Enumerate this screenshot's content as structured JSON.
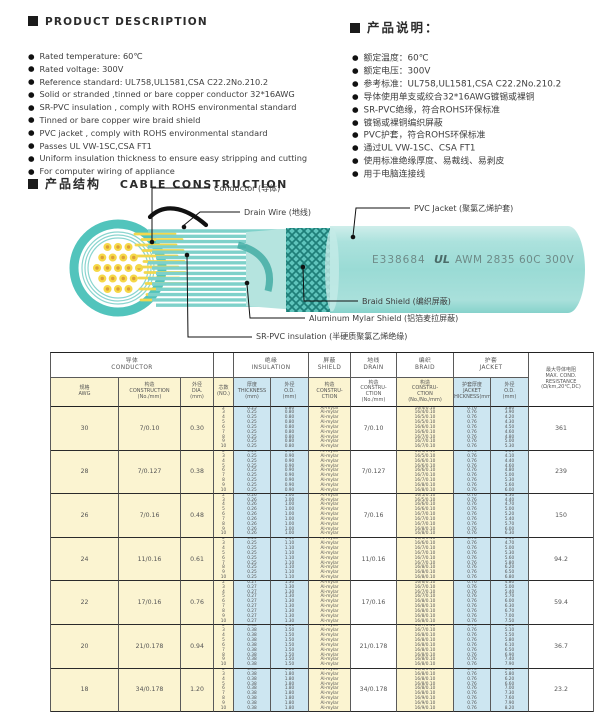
{
  "product_description": {
    "title_en": "PRODUCT DESCRIPTION",
    "items_en": [
      "Rated temperature: 60℃",
      "Rated voltage: 300V",
      "Reference standard: UL758,UL1581,CSA C22.2No.210.2",
      "Solid or stranded ,tinned or bare copper conductor 32*16AWG",
      "SR-PVC insulation , comply with ROHS environmental standard",
      "Tinned or bare copper wire braid shield",
      "PVC jacket , comply with ROHS environmental standard",
      "Passes UL VW-1SC,CSA FT1",
      "Uniform insulation thickness to ensure easy stripping and cutting",
      "For computer wiring of appliance"
    ],
    "title_zh": "产品说明：",
    "items_zh": [
      "额定温度：60℃",
      "额定电压：300V",
      "参考标准：UL758,UL1581,CSA C22.2No.210.2",
      "导体使用单支或绞合32*16AWG镀锡或裸铜",
      "SR-PVC绝缘，符合ROHS环保标准",
      "镀锡或裸铜编织屏蔽",
      "PVC护套，符合ROHS环保标准",
      "通过UL VW-1SC、CSA FT1",
      "使用标准绝缘厚度、易裁线、易剥皮",
      "用于电脑连接线"
    ]
  },
  "construction": {
    "title_zh": "产品结构",
    "title_en": "CABLE CONSTRUCTION",
    "labels": {
      "conductor": "Conductor (导体)",
      "drain_wire": "Drain Wire (地线)",
      "pvc_jacket": "PVC Jacket (聚氯乙烯护套)",
      "braid_shield": "Braid Shield (编织屏蔽)",
      "aluminum_mylar_shield": "Aluminum Mylar Shield (铝箔麦拉屏蔽)",
      "sr_pvc_insulation": "SR-PVC insulation (半硬质聚氯乙烯绝缘)"
    },
    "jacket_print_file": "E338684",
    "jacket_print_ul": "UL",
    "jacket_print_spec": "AWM 2835 60C 300V"
  },
  "colors": {
    "teal_ring": "#52C4BC",
    "teal_jacket": "#9FDCD6",
    "braid_dark": "#1E7E78",
    "yellow_cell": "#FBF4D1",
    "blue_cell": "#CDE6F1",
    "conductor_yellow": "#F6D847"
  },
  "table": {
    "groups": [
      {
        "zh": "导体",
        "en": "CONDUCTOR"
      },
      {
        "zh": "",
        "en": ""
      },
      {
        "zh": "绝缘",
        "en": "INSULATION"
      },
      {
        "zh": "屏蔽",
        "en": "SHIELD"
      },
      {
        "zh": "地线",
        "en": "DRAIN"
      },
      {
        "zh": "编织",
        "en": "BRAID"
      },
      {
        "zh": "护套",
        "en": "JACKET"
      }
    ],
    "sub_headers": [
      [
        "规格",
        "AWG"
      ],
      [
        "构造",
        "CONSTRUCTION",
        "(No./mm)"
      ],
      [
        "外径",
        "DIA.",
        "(mm)"
      ],
      [
        "芯数",
        "(NO.)"
      ],
      [
        "厚度",
        "THICKNESS",
        "(mm)"
      ],
      [
        "外径",
        "O.D.",
        "(mm)"
      ],
      [
        "构造",
        "CONSTRU-",
        "CTION"
      ],
      [
        "构造",
        "CONSTRU-",
        "CTION",
        "(No./mm)"
      ],
      [
        "构造",
        "CONSTRU-",
        "CTION",
        "(No./No./mm)"
      ],
      [
        "护套厚度",
        "JACKET",
        "THICKNESS(mm)"
      ],
      [
        "外径",
        "O.D.",
        "(mm)"
      ]
    ],
    "resistance_header": [
      "最大导体电阻",
      "MAX. COND.",
      "RESISTANCE",
      "(Ω/km,20℃,DC)"
    ],
    "rows": [
      {
        "awg": "30",
        "construction": "7/0.10",
        "dia": "0.30",
        "cores": [
          "2",
          "3",
          "4",
          "5",
          "6",
          "7",
          "8",
          "9",
          "10"
        ],
        "ins_thickness": [
          "0.25",
          "0.25",
          "0.25",
          "0.25",
          "0.25",
          "0.25",
          "0.25",
          "0.25",
          "0.25"
        ],
        "ins_od": [
          "0.80",
          "0.80",
          "0.80",
          "0.80",
          "0.80",
          "0.80",
          "0.80",
          "0.80",
          "0.80"
        ],
        "shield": [
          "Al-mylar",
          "Al-mylar",
          "Al-mylar",
          "Al-mylar",
          "Al-mylar",
          "Al-mylar",
          "Al-mylar",
          "Al-mylar",
          "Al-mylar"
        ],
        "drain": "7/0.10",
        "braid": [
          "16/4/0.10",
          "16/4/0.10",
          "16/5/0.10",
          "16/5/0.10",
          "16/6/0.10",
          "16/6/0.10",
          "16/7/0.10",
          "16/7/0.10",
          "16/7/0.10"
        ],
        "jk_thickness": [
          "0.76",
          "0.76",
          "0.76",
          "0.76",
          "0.76",
          "0.76",
          "0.76",
          "0.76",
          "0.76"
        ],
        "jk_od": [
          "3.80",
          "3.90",
          "4.20",
          "4.30",
          "4.50",
          "4.60",
          "4.80",
          "5.00",
          "5.30"
        ],
        "resistance": "361"
      },
      {
        "awg": "28",
        "construction": "7/0.127",
        "dia": "0.38",
        "cores": [
          "2",
          "3",
          "4",
          "5",
          "6",
          "7",
          "8",
          "9",
          "10"
        ],
        "ins_thickness": [
          "0.25",
          "0.25",
          "0.25",
          "0.25",
          "0.25",
          "0.25",
          "0.25",
          "0.25",
          "0.25"
        ],
        "ins_od": [
          "0.90",
          "0.90",
          "0.90",
          "0.90",
          "0.90",
          "0.90",
          "0.90",
          "0.90",
          "0.90"
        ],
        "shield": [
          "Al-mylar",
          "Al-mylar",
          "Al-mylar",
          "Al-mylar",
          "Al-mylar",
          "Al-mylar",
          "Al-mylar",
          "Al-mylar",
          "Al-mylar"
        ],
        "drain": "7/0.127",
        "braid": [
          "16/5/0.10",
          "16/5/0.10",
          "16/6/0.10",
          "16/6/0.10",
          "16/6/0.10",
          "16/7/0.10",
          "16/7/0.10",
          "16/8/0.10",
          "16/8/0.10"
        ],
        "jk_thickness": [
          "0.76",
          "0.76",
          "0.76",
          "0.76",
          "0.76",
          "0.76",
          "0.76",
          "0.76",
          "0.76"
        ],
        "jk_od": [
          "4.00",
          "4.10",
          "4.40",
          "4.60",
          "4.80",
          "5.00",
          "5.30",
          "5.60",
          "6.00"
        ],
        "resistance": "239"
      },
      {
        "awg": "26",
        "construction": "7/0.16",
        "dia": "0.48",
        "cores": [
          "2",
          "3",
          "4",
          "5",
          "6",
          "7",
          "8",
          "9",
          "10"
        ],
        "ins_thickness": [
          "0.26",
          "0.26",
          "0.26",
          "0.26",
          "0.26",
          "0.26",
          "0.26",
          "0.26",
          "0.26"
        ],
        "ins_od": [
          "1.00",
          "1.00",
          "1.00",
          "1.00",
          "1.00",
          "1.00",
          "1.00",
          "1.00",
          "1.00"
        ],
        "shield": [
          "Al-mylar",
          "Al-mylar",
          "Al-mylar",
          "Al-mylar",
          "Al-mylar",
          "Al-mylar",
          "Al-mylar",
          "Al-mylar",
          "Al-mylar"
        ],
        "drain": "7/0.16",
        "braid": [
          "16/5/0.10",
          "16/5/0.10",
          "16/6/0.10",
          "16/6/0.10",
          "16/7/0.10",
          "16/7/0.10",
          "16/7/0.10",
          "16/8/0.10",
          "16/8/0.10"
        ],
        "jk_thickness": [
          "0.76",
          "0.76",
          "0.76",
          "0.76",
          "0.76",
          "0.76",
          "0.76",
          "0.76",
          "0.76"
        ],
        "jk_od": [
          "4.30",
          "4.40",
          "4.70",
          "5.00",
          "5.20",
          "5.40",
          "5.70",
          "6.00",
          "6.30"
        ],
        "resistance": "150"
      },
      {
        "awg": "24",
        "construction": "11/0.16",
        "dia": "0.61",
        "cores": [
          "2",
          "3",
          "4",
          "5",
          "6",
          "7",
          "8",
          "9",
          "10"
        ],
        "ins_thickness": [
          "0.25",
          "0.25",
          "0.25",
          "0.25",
          "0.25",
          "0.25",
          "0.25",
          "0.25",
          "0.25"
        ],
        "ins_od": [
          "1.10",
          "1.10",
          "1.10",
          "1.10",
          "1.10",
          "1.10",
          "1.10",
          "1.10",
          "1.10"
        ],
        "shield": [
          "Al-mylar",
          "Al-mylar",
          "Al-mylar",
          "Al-mylar",
          "Al-mylar",
          "Al-mylar",
          "Al-mylar",
          "Al-mylar",
          "Al-mylar"
        ],
        "drain": "11/0.16",
        "braid": [
          "16/6/0.10",
          "16/6/0.10",
          "16/7/0.10",
          "16/7/0.10",
          "16/7/0.10",
          "16/7/0.10",
          "16/8/0.10",
          "16/8/0.10",
          "16/8/0.10"
        ],
        "jk_thickness": [
          "0.76",
          "0.76",
          "0.76",
          "0.76",
          "0.76",
          "0.76",
          "0.76",
          "0.76",
          "0.76"
        ],
        "jk_od": [
          "4.50",
          "4.70",
          "5.00",
          "5.30",
          "5.60",
          "5.80",
          "6.20",
          "6.50",
          "6.80"
        ],
        "resistance": "94.2"
      },
      {
        "awg": "22",
        "construction": "17/0.16",
        "dia": "0.76",
        "cores": [
          "2",
          "3",
          "4",
          "5",
          "6",
          "7",
          "8",
          "9",
          "10"
        ],
        "ins_thickness": [
          "0.27",
          "0.27",
          "0.27",
          "0.27",
          "0.27",
          "0.27",
          "0.27",
          "0.27",
          "0.27"
        ],
        "ins_od": [
          "1.30",
          "1.30",
          "1.30",
          "1.30",
          "1.30",
          "1.30",
          "1.30",
          "1.30",
          "1.30"
        ],
        "shield": [
          "Al-mylar",
          "Al-mylar",
          "Al-mylar",
          "Al-mylar",
          "Al-mylar",
          "Al-mylar",
          "Al-mylar",
          "Al-mylar",
          "Al-mylar"
        ],
        "drain": "17/0.16",
        "braid": [
          "16/6/0.10",
          "16/7/0.10",
          "16/7/0.10",
          "16/7/0.10",
          "16/8/0.10",
          "16/8/0.10",
          "16/8/0.10",
          "16/8/0.10",
          "16/8/0.10"
        ],
        "jk_thickness": [
          "0.76",
          "0.76",
          "0.76",
          "0.76",
          "0.76",
          "0.76",
          "0.76",
          "0.76",
          "0.76"
        ],
        "jk_od": [
          "4.80",
          "5.00",
          "5.40",
          "5.70",
          "6.00",
          "6.30",
          "6.70",
          "7.00",
          "7.50"
        ],
        "resistance": "59.4"
      },
      {
        "awg": "20",
        "construction": "21/0.178",
        "dia": "0.94",
        "cores": [
          "2",
          "3",
          "4",
          "5",
          "6",
          "7",
          "8",
          "9",
          "10"
        ],
        "ins_thickness": [
          "0.38",
          "0.38",
          "0.38",
          "0.38",
          "0.38",
          "0.38",
          "0.38",
          "0.38",
          "0.38"
        ],
        "ins_od": [
          "1.50",
          "1.50",
          "1.50",
          "1.50",
          "1.50",
          "1.50",
          "1.50",
          "1.50",
          "1.50"
        ],
        "shield": [
          "Al-mylar",
          "Al-mylar",
          "Al-mylar",
          "Al-mylar",
          "Al-mylar",
          "Al-mylar",
          "Al-mylar",
          "Al-mylar",
          "Al-mylar"
        ],
        "drain": "21/0.178",
        "braid": [
          "16/7/0.10",
          "16/7/0.10",
          "16/8/0.10",
          "16/8/0.10",
          "16/8/0.10",
          "16/8/0.10",
          "16/8/0.10",
          "16/8/0.10",
          "16/8/0.10"
        ],
        "jk_thickness": [
          "0.76",
          "0.76",
          "0.76",
          "0.76",
          "0.76",
          "0.76",
          "0.76",
          "0.76",
          "0.76"
        ],
        "jk_od": [
          "4.80",
          "5.10",
          "5.50",
          "5.80",
          "6.10",
          "6.50",
          "6.90",
          "7.40",
          "7.90"
        ],
        "resistance": "36.7"
      },
      {
        "awg": "18",
        "construction": "34/0.178",
        "dia": "1.20",
        "cores": [
          "2",
          "3",
          "4",
          "5",
          "6",
          "7",
          "8",
          "9",
          "10"
        ],
        "ins_thickness": [
          "0.38",
          "0.38",
          "0.38",
          "0.38",
          "0.38",
          "0.38",
          "0.38",
          "0.38",
          "0.38"
        ],
        "ins_od": [
          "1.80",
          "1.80",
          "1.80",
          "1.80",
          "1.80",
          "1.80",
          "1.80",
          "1.80",
          "1.80"
        ],
        "shield": [
          "Al-mylar",
          "Al-mylar",
          "Al-mylar",
          "Al-mylar",
          "Al-mylar",
          "Al-mylar",
          "Al-mylar",
          "Al-mylar",
          "Al-mylar"
        ],
        "drain": "34/0.178",
        "braid": [
          "16/8/0.10",
          "16/8/0.10",
          "16/8/0.10",
          "16/8/0.10",
          "16/8/0.10",
          "16/8/0.10",
          "16/9/0.10",
          "16/9/0.10",
          "16/9/0.10"
        ],
        "jk_thickness": [
          "0.76",
          "0.76",
          "0.76",
          "0.76",
          "0.76",
          "0.76",
          "0.76",
          "0.76",
          "0.76"
        ],
        "jk_od": [
          "5.50",
          "5.80",
          "6.20",
          "6.60",
          "7.00",
          "7.30",
          "7.60",
          "7.90",
          "8.20"
        ],
        "resistance": "23.2"
      }
    ]
  }
}
